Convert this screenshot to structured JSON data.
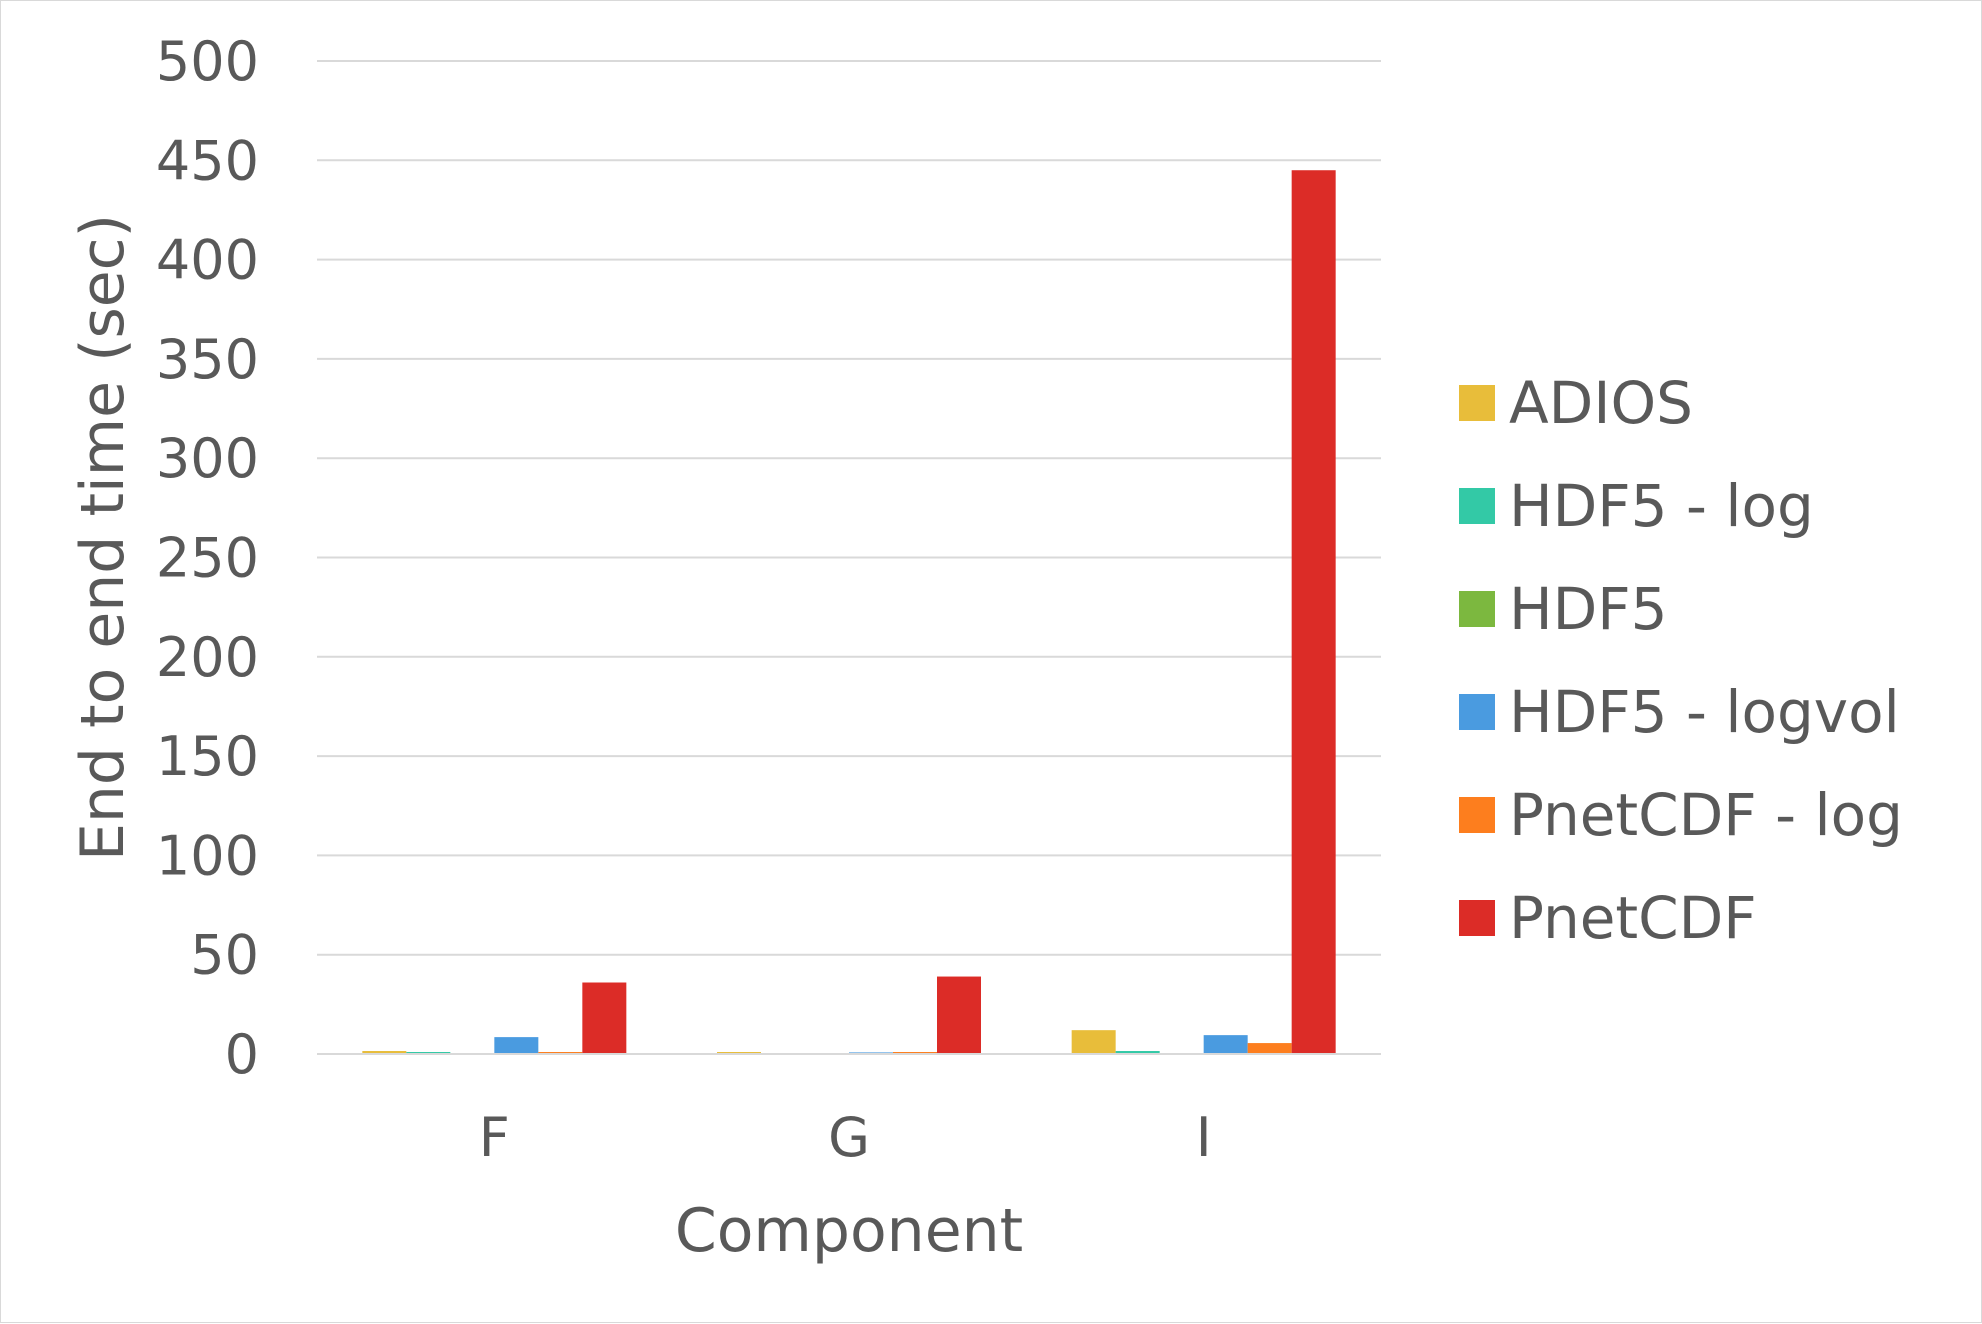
{
  "chart_data": {
    "type": "bar",
    "title": "",
    "xlabel": "Component",
    "ylabel": "End to end time (sec)",
    "ylim": [
      0,
      500
    ],
    "yticks": [
      0,
      50,
      100,
      150,
      200,
      250,
      300,
      350,
      400,
      450,
      500
    ],
    "grid": true,
    "legend_position": "right",
    "categories": [
      "F",
      "G",
      "I"
    ],
    "series": [
      {
        "name": "ADIOS",
        "color": "#e8bd3a",
        "values": [
          1.5,
          1.0,
          12
        ]
      },
      {
        "name": "HDF5 - log",
        "color": "#33c9a6",
        "values": [
          1.0,
          0.5,
          1.5
        ]
      },
      {
        "name": "HDF5",
        "color": "#7cb83f",
        "values": [
          0,
          0,
          0
        ]
      },
      {
        "name": "HDF5 - logvol",
        "color": "#4a9be0",
        "values": [
          8.5,
          0.8,
          9.5
        ]
      },
      {
        "name": "PnetCDF - log",
        "color": "#fd7e1e",
        "values": [
          1.0,
          1.0,
          5.5
        ]
      },
      {
        "name": "PnetCDF",
        "color": "#dc2c27",
        "values": [
          36,
          39,
          445
        ]
      }
    ]
  }
}
